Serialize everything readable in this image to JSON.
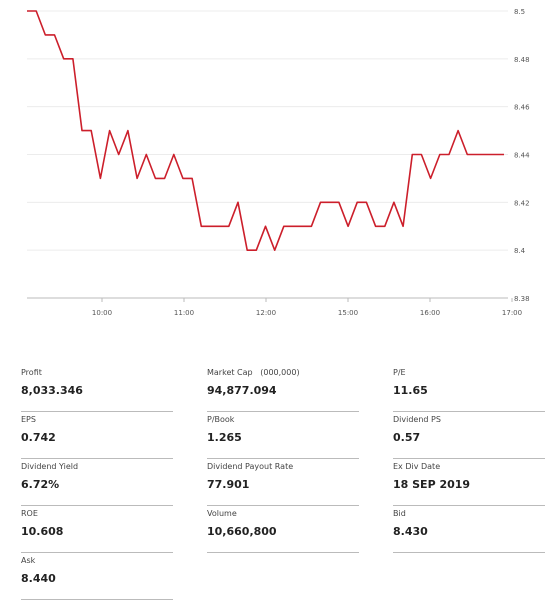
{
  "chart_data": {
    "type": "line",
    "title": "",
    "xlabel": "",
    "ylabel": "",
    "x_ticks": [
      "10:00",
      "11:00",
      "12:00",
      "15:00",
      "16:00",
      "17:00"
    ],
    "y_ticks": [
      "8.5",
      "8.48",
      "8.46",
      "8.44",
      "8.42",
      "8.4",
      "8.38"
    ],
    "ylim": [
      8.38,
      8.5
    ],
    "grid": "horizontal",
    "line_color": "#cc1f2b",
    "series": [
      {
        "values": [
          8.5,
          8.5,
          8.49,
          8.49,
          8.48,
          8.48,
          8.45,
          8.45,
          8.43,
          8.45,
          8.44,
          8.45,
          8.43,
          8.44,
          8.43,
          8.43,
          8.44,
          8.43,
          8.43,
          8.41,
          8.41,
          8.41,
          8.41,
          8.42,
          8.4,
          8.4,
          8.41,
          8.4,
          8.41,
          8.41,
          8.41,
          8.41,
          8.42,
          8.42,
          8.42,
          8.41,
          8.42,
          8.42,
          8.41,
          8.41,
          8.42,
          8.41,
          8.44,
          8.44,
          8.43,
          8.44,
          8.44,
          8.45,
          8.44,
          8.44,
          8.44,
          8.44,
          8.44
        ]
      }
    ]
  },
  "stats": [
    {
      "label": "Profit",
      "value": "8,033.346"
    },
    {
      "label": "Market Cap   (000,000)",
      "value": "94,877.094"
    },
    {
      "label": "P/E",
      "value": "11.65"
    },
    {
      "label": "EPS",
      "value": "0.742"
    },
    {
      "label": "P/Book",
      "value": "1.265"
    },
    {
      "label": "Dividend PS",
      "value": "0.57"
    },
    {
      "label": "Dividend Yield",
      "value": "6.72%"
    },
    {
      "label": "Dividend Payout Rate",
      "value": "77.901"
    },
    {
      "label": "Ex Div Date",
      "value": "18 SEP 2019"
    },
    {
      "label": "ROE",
      "value": "10.608"
    },
    {
      "label": "Volume",
      "value": "10,660,800"
    },
    {
      "label": "Bid",
      "value": "8.430"
    },
    {
      "label": "Ask",
      "value": "8.440"
    }
  ]
}
